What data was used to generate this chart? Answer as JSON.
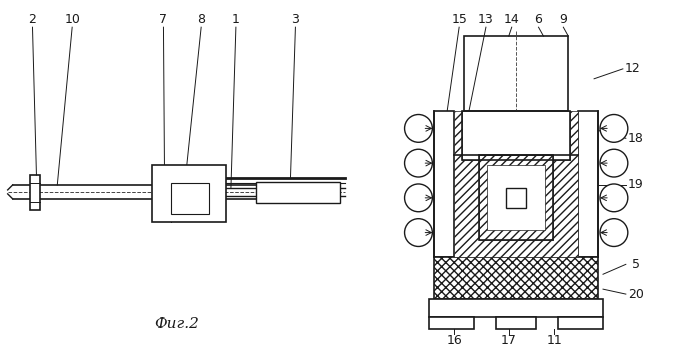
{
  "bg_color": "#ffffff",
  "lc": "#1a1a1a",
  "fig_caption": "Фиг.2",
  "figsize": [
    6.99,
    3.58
  ],
  "dpi": 100
}
